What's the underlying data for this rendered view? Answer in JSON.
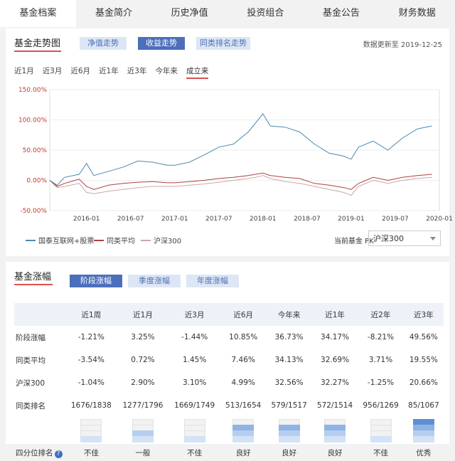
{
  "tabs": [
    "基金档案",
    "基金简介",
    "历史净值",
    "投资组合",
    "基金公告",
    "财务数据"
  ],
  "trend": {
    "title": "基金走势图",
    "buttons": [
      "净值走势",
      "收益走势",
      "同类排名走势"
    ],
    "active_button": 1,
    "updated": "数据更新至 2019-12-25",
    "ranges": [
      "近1月",
      "近3月",
      "近6月",
      "近1年",
      "近3年",
      "今年来",
      "成立来"
    ],
    "active_range": 6,
    "pk_label": "当前基金 PK",
    "pk_value": "沪深300"
  },
  "chart_data": {
    "type": "line",
    "yticks": [
      "150.00%",
      "100.00%",
      "50.00%",
      "0.00%",
      "-50.00%"
    ],
    "ylim": [
      -50,
      150
    ],
    "xticks": [
      "2016-01",
      "2016-07",
      "2017-01",
      "2017-07",
      "2018-01",
      "2018-07",
      "2019-01",
      "2019-07",
      "2020-01"
    ],
    "x": [
      "2015-08",
      "2015-09",
      "2015-10",
      "2015-12",
      "2016-01",
      "2016-02",
      "2016-04",
      "2016-06",
      "2016-08",
      "2016-10",
      "2016-12",
      "2017-01",
      "2017-03",
      "2017-05",
      "2017-07",
      "2017-09",
      "2017-11",
      "2017-12",
      "2018-01",
      "2018-02",
      "2018-04",
      "2018-06",
      "2018-08",
      "2018-10",
      "2018-12",
      "2019-01",
      "2019-02",
      "2019-04",
      "2019-06",
      "2019-08",
      "2019-10",
      "2019-12"
    ],
    "series": [
      {
        "name": "国泰互联网+股票",
        "color": "#4a8ab0",
        "values": [
          0,
          -8,
          5,
          10,
          28,
          8,
          15,
          22,
          32,
          30,
          25,
          25,
          30,
          42,
          55,
          60,
          80,
          95,
          110,
          90,
          88,
          80,
          60,
          45,
          40,
          35,
          55,
          65,
          50,
          70,
          85,
          90
        ]
      },
      {
        "name": "同类平均",
        "color": "#b04040",
        "values": [
          0,
          -10,
          -5,
          2,
          -10,
          -15,
          -8,
          -5,
          -3,
          -2,
          -4,
          -4,
          -2,
          0,
          3,
          5,
          8,
          10,
          12,
          8,
          5,
          3,
          -5,
          -8,
          -12,
          -15,
          -5,
          5,
          0,
          5,
          8,
          10
        ]
      },
      {
        "name": "沪深300",
        "color": "#c8a8a8",
        "values": [
          0,
          -12,
          -10,
          -5,
          -20,
          -22,
          -18,
          -15,
          -12,
          -10,
          -10,
          -10,
          -8,
          -6,
          -3,
          0,
          3,
          5,
          8,
          3,
          -2,
          -5,
          -10,
          -15,
          -20,
          -25,
          -10,
          0,
          -5,
          0,
          3,
          5
        ]
      }
    ]
  },
  "perf": {
    "title": "基金涨幅",
    "buttons": [
      "阶段涨幅",
      "季度涨幅",
      "年度涨幅"
    ],
    "active_button": 0,
    "periods": [
      "近1周",
      "近1月",
      "近3月",
      "近6月",
      "今年来",
      "近1年",
      "近2年",
      "近3年"
    ],
    "rows": [
      {
        "label": "阶段涨幅",
        "values": [
          "-1.21%",
          "3.25%",
          "-1.44%",
          "10.85%",
          "36.73%",
          "34.17%",
          "-8.21%",
          "49.56%"
        ]
      },
      {
        "label": "同类平均",
        "values": [
          "-3.54%",
          "0.72%",
          "1.45%",
          "7.46%",
          "34.13%",
          "32.69%",
          "3.71%",
          "19.55%"
        ]
      },
      {
        "label": "沪深300",
        "values": [
          "-1.04%",
          "2.90%",
          "3.10%",
          "4.99%",
          "32.56%",
          "32.27%",
          "-1.25%",
          "20.66%"
        ]
      }
    ],
    "rank_label": "同类排名",
    "ranks": [
      "1676/1838",
      "1277/1796",
      "1669/1749",
      "513/1654",
      "579/1517",
      "572/1514",
      "956/1269",
      "85/1067"
    ],
    "quartile_label": "四分位排名",
    "quartile_levels": [
      1,
      2,
      1,
      3,
      3,
      3,
      1,
      4
    ],
    "quartile_texts": [
      "不佳",
      "一般",
      "不佳",
      "良好",
      "良好",
      "良好",
      "不佳",
      "优秀"
    ]
  }
}
